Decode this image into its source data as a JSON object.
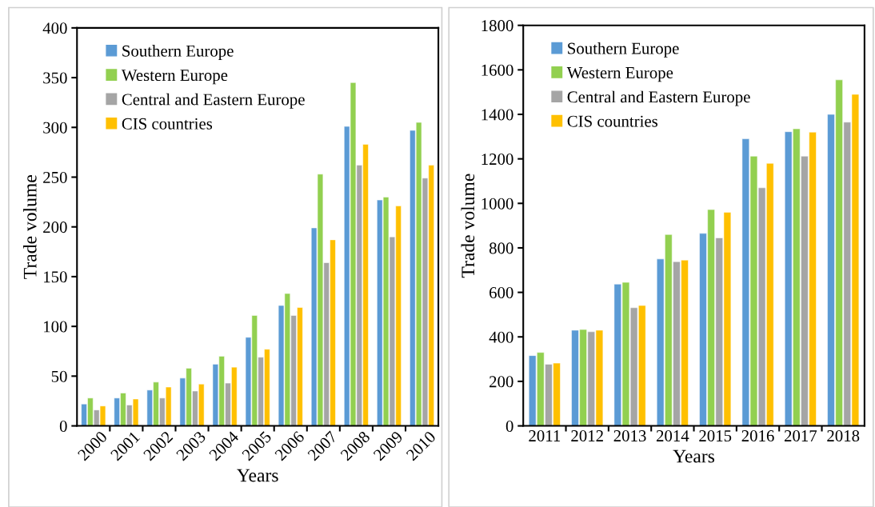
{
  "chart_data": [
    {
      "type": "bar",
      "categories": [
        "2000",
        "2001",
        "2002",
        "2003",
        "2004",
        "2005",
        "2006",
        "2007",
        "2008",
        "2009",
        "2010"
      ],
      "xlabel": "Years",
      "ylabel": "Trade volume",
      "ylim": [
        0,
        400
      ],
      "yticks": [
        0,
        50,
        100,
        150,
        200,
        250,
        300,
        350,
        400
      ],
      "legend": "top left",
      "grid": false,
      "series": [
        {
          "name": "Southern Europe",
          "color": "#5b9bd5",
          "values": [
            22,
            28,
            36,
            48,
            62,
            89,
            121,
            199,
            301,
            227,
            297
          ]
        },
        {
          "name": "Western Europe",
          "color": "#92d050",
          "values": [
            28,
            33,
            44,
            58,
            70,
            111,
            133,
            253,
            345,
            230,
            305
          ]
        },
        {
          "name": "Central and Eastern Europe",
          "color": "#a5a5a5",
          "values": [
            16,
            21,
            28,
            35,
            43,
            69,
            111,
            164,
            262,
            190,
            249
          ]
        },
        {
          "name": "CIS countries",
          "color": "#ffc000",
          "values": [
            20,
            27,
            39,
            42,
            59,
            77,
            119,
            187,
            283,
            221,
            262
          ]
        }
      ]
    },
    {
      "type": "bar",
      "categories": [
        "2011",
        "2012",
        "2013",
        "2014",
        "2015",
        "2016",
        "2017",
        "2018"
      ],
      "xlabel": "Years",
      "ylabel": "Trade volume",
      "ylim": [
        0,
        1800
      ],
      "yticks": [
        0,
        200,
        400,
        600,
        800,
        1000,
        1200,
        1400,
        1600,
        1800
      ],
      "legend": "top left",
      "grid": false,
      "series": [
        {
          "name": "Southern Europe",
          "color": "#5b9bd5",
          "values": [
            316,
            430,
            637,
            750,
            865,
            1290,
            1322,
            1400
          ]
        },
        {
          "name": "Western Europe",
          "color": "#92d050",
          "values": [
            330,
            433,
            645,
            860,
            972,
            1212,
            1335,
            1555
          ]
        },
        {
          "name": "Central and Eastern Europe",
          "color": "#a5a5a5",
          "values": [
            277,
            423,
            531,
            738,
            845,
            1070,
            1212,
            1365
          ]
        },
        {
          "name": "CIS countries",
          "color": "#ffc000",
          "values": [
            282,
            430,
            541,
            745,
            960,
            1180,
            1320,
            1490
          ]
        }
      ]
    }
  ]
}
